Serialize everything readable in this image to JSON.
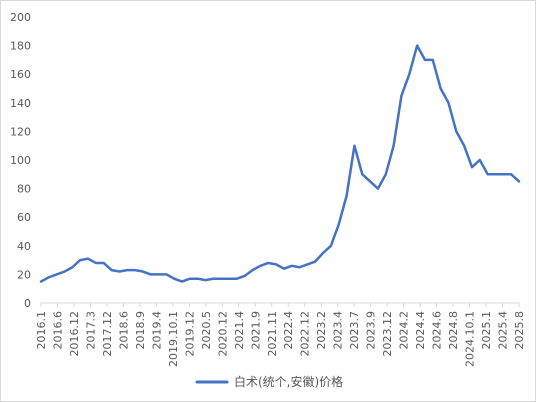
{
  "chart_data": {
    "type": "line",
    "title": "",
    "xlabel": "",
    "ylabel": "",
    "ylim": [
      0,
      200
    ],
    "yticks": [
      0,
      20,
      40,
      60,
      80,
      100,
      120,
      140,
      160,
      180,
      200
    ],
    "grid": false,
    "legend_position": "bottom",
    "colors": {
      "series": "#4472C4",
      "axis": "#d9d9d9",
      "text": "#595959"
    },
    "x_tick_labels": [
      "2016.1",
      "2016.6",
      "2016.12",
      "2017.3",
      "2017.12",
      "2018.6",
      "2018.9",
      "2019.4",
      "2019.10.1",
      "2019.12",
      "2020.5",
      "2020.12",
      "2021.4",
      "2021.9",
      "2021.11",
      "2022.4",
      "2022.12",
      "2023.2",
      "2023.4",
      "2023.7",
      "2023.9",
      "2023.12",
      "2024.2",
      "2024.4",
      "2024.6",
      "2024.8",
      "2024.10.1",
      "2025.1",
      "2025.4",
      "2025.8"
    ],
    "series": [
      {
        "name": "白术(统个,安徽)价格",
        "values": [
          15,
          18,
          20,
          22,
          25,
          30,
          31,
          28,
          28,
          23,
          22,
          23,
          23,
          22,
          20,
          20,
          20,
          17,
          15,
          17,
          17,
          16,
          17,
          17,
          17,
          17,
          19,
          23,
          26,
          28,
          27,
          24,
          26,
          25,
          27,
          29,
          35,
          40,
          55,
          75,
          110,
          90,
          85,
          80,
          90,
          110,
          145,
          160,
          180,
          170,
          170,
          150,
          140,
          120,
          110,
          95,
          100,
          90,
          90,
          90,
          90,
          85
        ]
      }
    ]
  }
}
